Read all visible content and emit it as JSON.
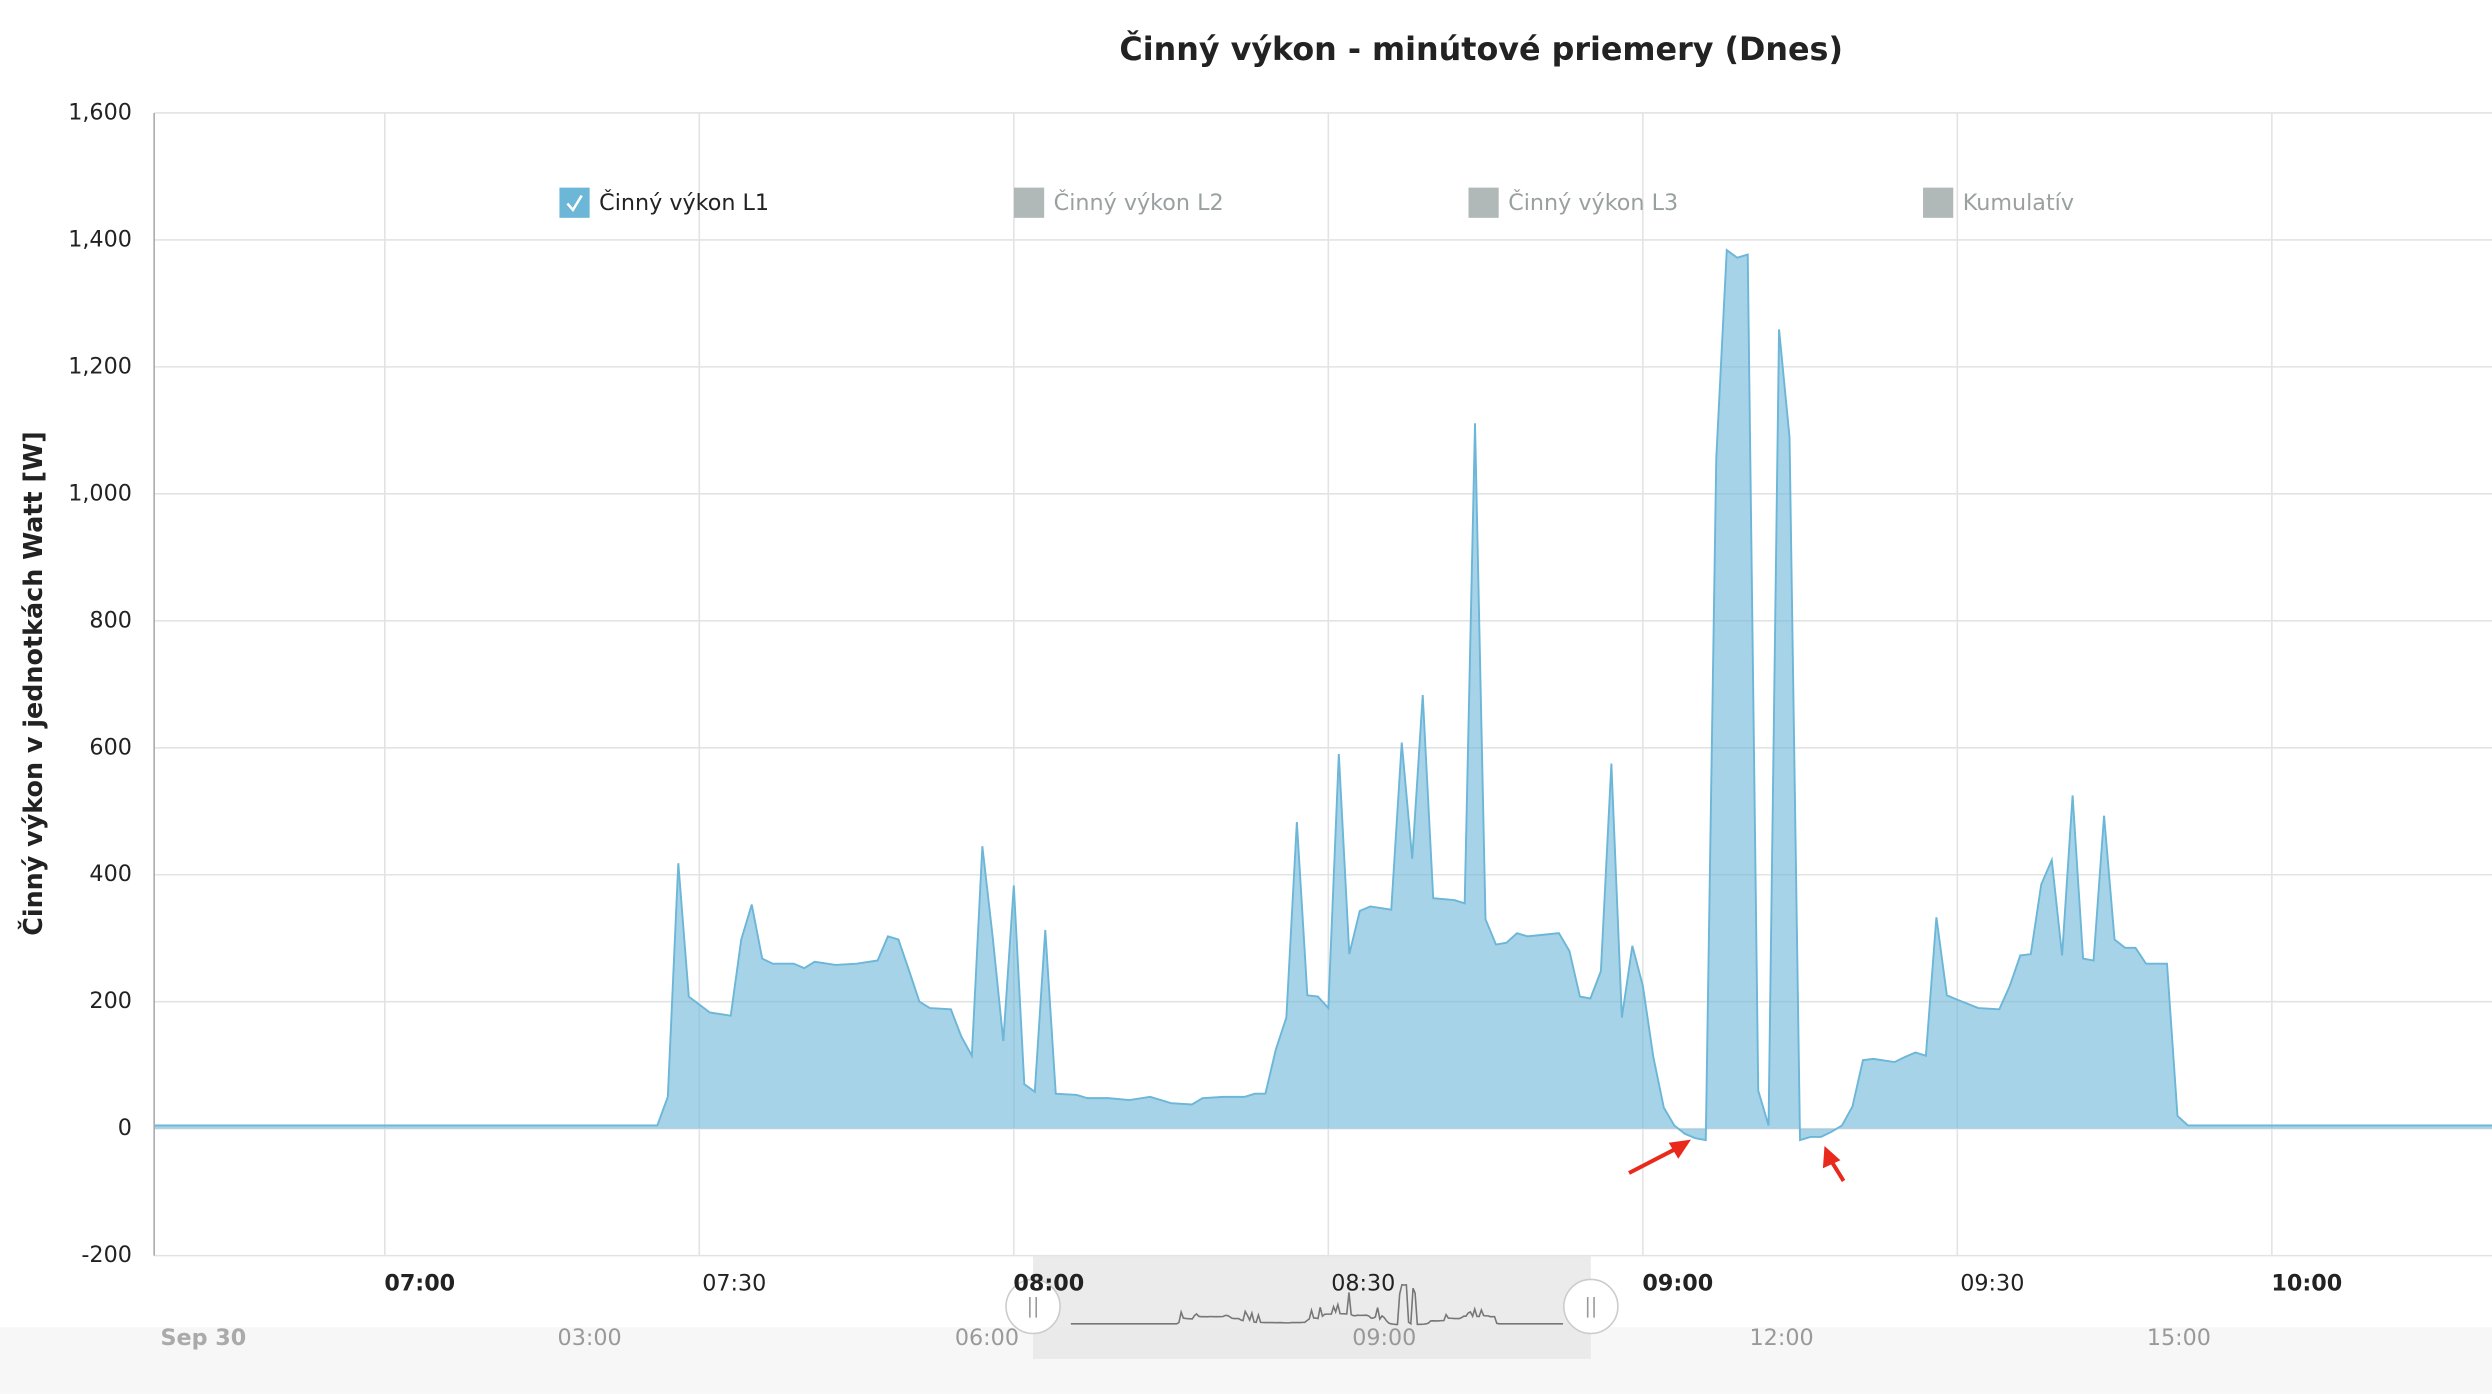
{
  "chart_data": {
    "type": "area",
    "title": "Činný výkon - minútové priemery (Dnes)",
    "y_label": "Činný výkon v jednotkách Watt [W]",
    "grid": true,
    "xlim": [
      "06:38",
      "10:21"
    ],
    "xticks": [
      "07:00",
      "07:30",
      "08:00",
      "08:30",
      "09:00",
      "09:30",
      "10:00"
    ],
    "ylim": [
      -200,
      1600
    ],
    "yticks": [
      -200,
      0,
      200,
      400,
      600,
      800,
      {
        "value": 1000,
        "label": "1,000"
      },
      {
        "value": 1200,
        "label": "1,200"
      },
      {
        "value": 1400,
        "label": "1,400"
      },
      {
        "value": 1600,
        "label": "1,600"
      }
    ],
    "x": [
      "06:38",
      "07:25",
      "07:26",
      "07:27",
      "07:28",
      "07:29",
      "07:31",
      "07:33",
      "07:34",
      "07:35",
      "07:36",
      "07:37",
      "07:39",
      "07:40",
      "07:41",
      "07:43",
      "07:45",
      "07:47",
      "07:48",
      "07:49",
      "07:50",
      "07:51",
      "07:52",
      "07:54",
      "07:55",
      "07:56",
      "07:57",
      "07:58",
      "07:59",
      "08:00",
      "08:01",
      "08:02",
      "08:03",
      "08:04",
      "08:06",
      "08:07",
      "08:09",
      "08:11",
      "08:13",
      "08:15",
      "08:17",
      "08:18",
      "08:20",
      "08:22",
      "08:23",
      "08:24",
      "08:25",
      "08:26",
      "08:27",
      "08:28",
      "08:29",
      "08:30",
      "08:31",
      "08:32",
      "08:33",
      "08:34",
      "08:36",
      "08:37",
      "08:38",
      "08:39",
      "08:40",
      "08:42",
      "08:43",
      "08:44",
      "08:45",
      "08:46",
      "08:47",
      "08:48",
      "08:49",
      "08:52",
      "08:53",
      "08:54",
      "08:55",
      "08:56",
      "08:57",
      "08:58",
      "08:59",
      "09:00",
      "09:01",
      "09:02",
      "09:03",
      "09:04",
      "09:05",
      "09:06",
      "09:07",
      "09:08",
      "09:09",
      "09:10",
      "09:11",
      "09:12",
      "09:13",
      "09:14",
      "09:15",
      "09:16",
      "09:17",
      "09:18",
      "09:19",
      "09:20",
      "09:21",
      "09:22",
      "09:24",
      "09:25",
      "09:26",
      "09:27",
      "09:28",
      "09:29",
      "09:30",
      "09:32",
      "09:34",
      "09:35",
      "09:36",
      "09:37",
      "09:38",
      "09:39",
      "09:40",
      "09:41",
      "09:42",
      "09:43",
      "09:44",
      "09:45",
      "09:46",
      "09:47",
      "09:48",
      "09:50",
      "09:51",
      "09:52",
      "10:21"
    ],
    "series": [
      {
        "name": "Činný výkon L1",
        "color": "#6cb6d8",
        "visible": true,
        "values": [
          5,
          5,
          5,
          50,
          418,
          208,
          183,
          178,
          298,
          353,
          268,
          260,
          260,
          253,
          263,
          258,
          260,
          265,
          303,
          298,
          250,
          200,
          190,
          188,
          145,
          115,
          445,
          300,
          138,
          383,
          70,
          58,
          313,
          55,
          53,
          48,
          48,
          45,
          50,
          40,
          38,
          48,
          50,
          50,
          55,
          55,
          125,
          175,
          483,
          210,
          208,
          190,
          590,
          275,
          343,
          350,
          345,
          608,
          425,
          683,
          363,
          360,
          355,
          1111,
          330,
          290,
          293,
          308,
          303,
          308,
          280,
          208,
          205,
          248,
          575,
          175,
          288,
          225,
          113,
          33,
          5,
          -8,
          -15,
          -18,
          1056,
          1384,
          1372,
          1377,
          60,
          5,
          1259,
          1089,
          -18,
          -13,
          -13,
          -5,
          5,
          35,
          108,
          110,
          105,
          113,
          120,
          115,
          333,
          210,
          203,
          190,
          188,
          225,
          273,
          275,
          385,
          423,
          273,
          525,
          268,
          265,
          493,
          298,
          285,
          285,
          260,
          260,
          20,
          5,
          5
        ]
      },
      {
        "name": "Činný výkon L2",
        "visible": false
      },
      {
        "name": "Činný výkon L3",
        "visible": false
      },
      {
        "name": "Kumulatív",
        "visible": false
      }
    ],
    "navigator": {
      "start_label": "Sep 30",
      "ticks": [
        "03:00",
        "06:00",
        "09:00",
        "12:00",
        "15:00"
      ]
    }
  }
}
